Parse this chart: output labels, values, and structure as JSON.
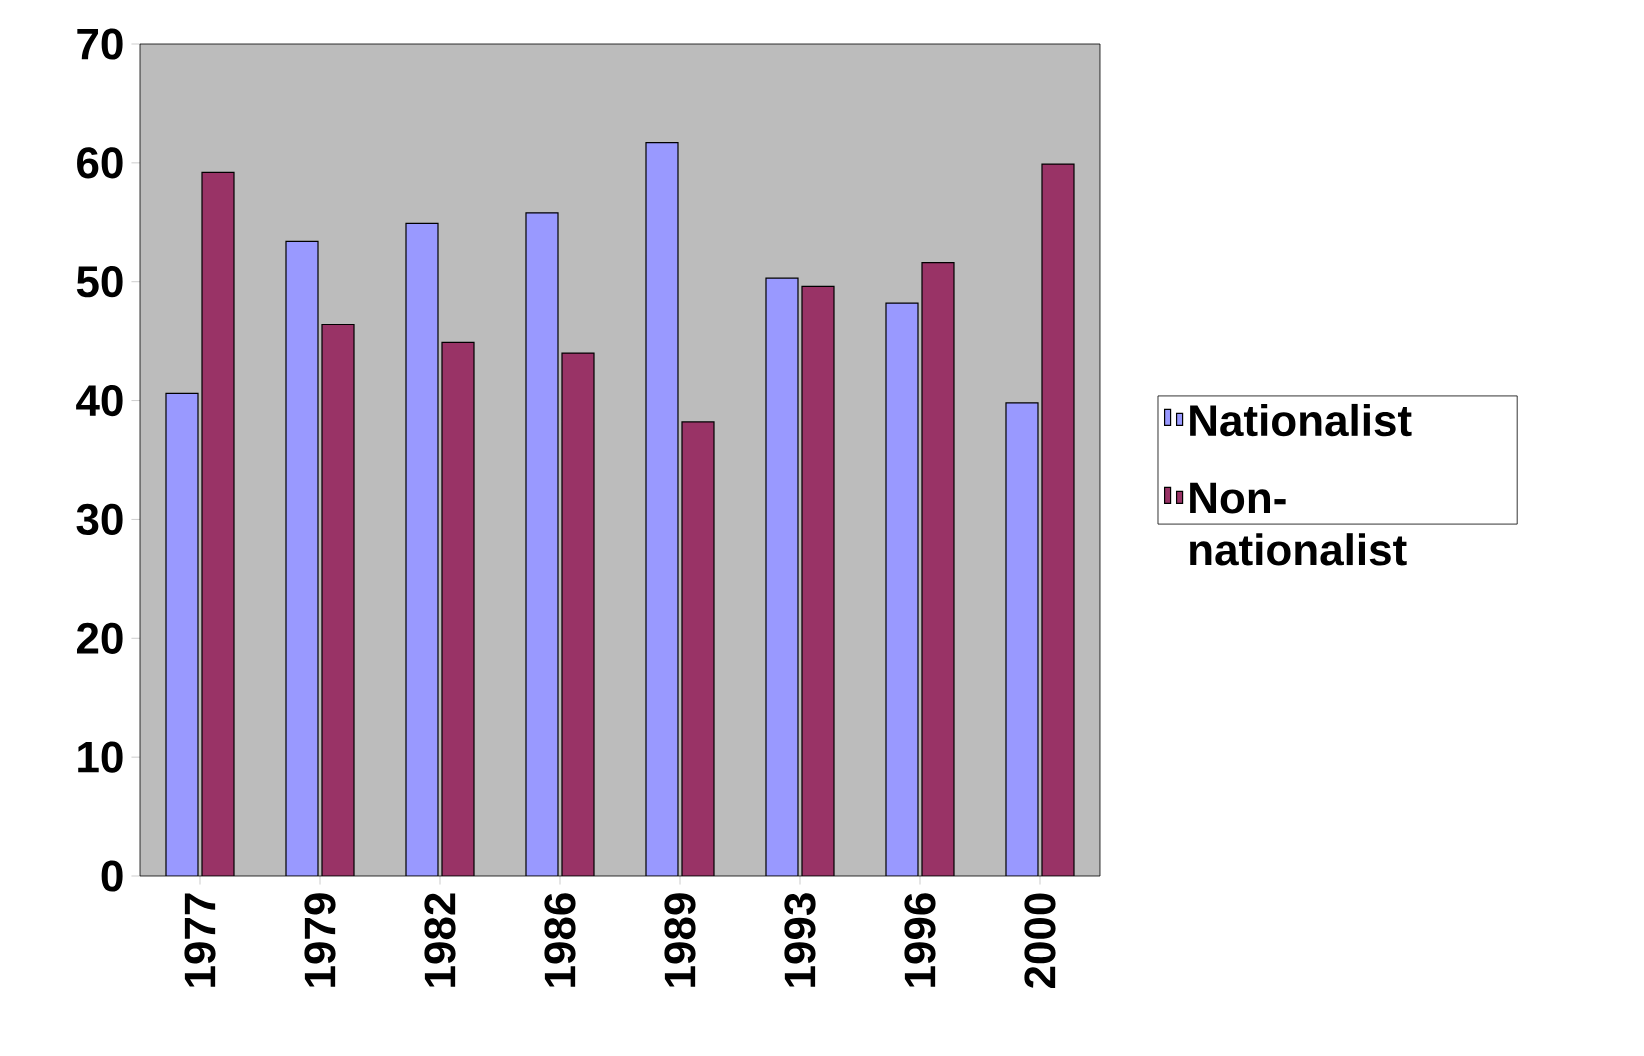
{
  "chart_data": {
    "type": "bar",
    "categories": [
      "1977",
      "1979",
      "1982",
      "1986",
      "1989",
      "1993",
      "1996",
      "2000"
    ],
    "series": [
      {
        "name": "Nationalist",
        "color": "#9999ff",
        "values": [
          40.6,
          53.4,
          54.9,
          55.8,
          61.7,
          50.3,
          48.2,
          39.8
        ]
      },
      {
        "name": "Non-nationalist",
        "color": "#993366",
        "values": [
          59.2,
          46.4,
          44.9,
          44.0,
          38.2,
          49.6,
          51.6,
          59.9
        ]
      }
    ],
    "ylim": [
      0,
      70
    ],
    "yticks": [
      0,
      10,
      20,
      30,
      40,
      50,
      60,
      70
    ],
    "grid": false,
    "legend": "right"
  }
}
